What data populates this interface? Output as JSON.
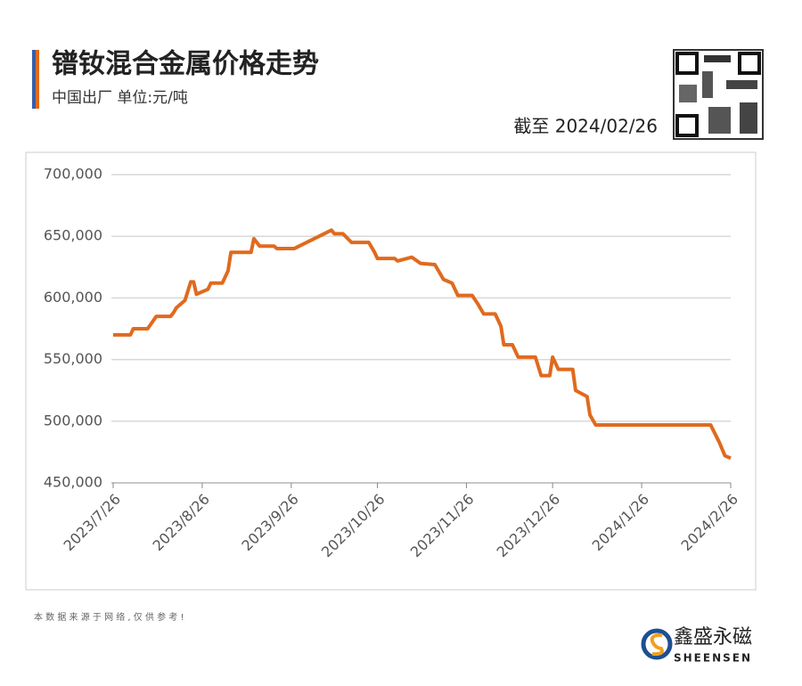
{
  "header": {
    "title": "镨钕混合金属价格走势",
    "subtitle": "中国出厂  单位:元/吨",
    "as_of": "截至 2024/02/26"
  },
  "chart_data": {
    "type": "line",
    "color": "#e06a1e",
    "grid": true,
    "x": [
      "2023/7/26",
      "2023/8/1",
      "2023/8/2",
      "2023/8/7",
      "2023/8/10",
      "2023/8/15",
      "2023/8/16",
      "2023/8/17",
      "2023/8/20",
      "2023/8/22",
      "2023/8/23",
      "2023/8/24",
      "2023/8/28",
      "2023/8/29",
      "2023/9/2",
      "2023/9/4",
      "2023/9/5",
      "2023/9/12",
      "2023/9/13",
      "2023/9/15",
      "2023/9/20",
      "2023/9/21",
      "2023/9/27",
      "2023/10/10",
      "2023/10/11",
      "2023/10/14",
      "2023/10/17",
      "2023/10/23",
      "2023/10/25",
      "2023/10/26",
      "2023/11/1",
      "2023/11/2",
      "2023/11/7",
      "2023/11/10",
      "2023/11/15",
      "2023/11/18",
      "2023/11/21",
      "2023/11/23",
      "2023/11/28",
      "2023/11/30",
      "2023/12/2",
      "2023/12/6",
      "2023/12/8",
      "2023/12/9",
      "2023/12/12",
      "2023/12/14",
      "2023/12/20",
      "2023/12/22",
      "2023/12/25",
      "2023/12/26",
      "2023/12/28",
      "2024/1/2",
      "2024/1/3",
      "2024/1/7",
      "2024/1/8",
      "2024/1/10",
      "2024/2/19",
      "2024/2/22",
      "2024/2/24",
      "2024/2/26"
    ],
    "series": [
      {
        "name": "镨钕混合金属",
        "color": "#e06a1e",
        "values": [
          570000,
          570000,
          575000,
          575000,
          585000,
          585000,
          588000,
          592000,
          598000,
          613000,
          613000,
          603000,
          607000,
          612000,
          612000,
          622000,
          637000,
          637000,
          648000,
          642000,
          642000,
          640000,
          640000,
          655000,
          652000,
          652000,
          645000,
          645000,
          637000,
          632000,
          632000,
          630000,
          633000,
          628000,
          627000,
          615000,
          612000,
          602000,
          602000,
          595000,
          587000,
          587000,
          577000,
          562000,
          562000,
          552000,
          552000,
          537000,
          537000,
          552000,
          542000,
          542000,
          525000,
          520000,
          505000,
          497000,
          497000,
          483000,
          472000,
          470000
        ]
      }
    ],
    "xlim": [
      "2023/7/26",
      "2024/2/26"
    ],
    "xticks": [
      "2023/7/26",
      "2023/8/26",
      "2023/9/26",
      "2023/10/26",
      "2023/11/26",
      "2023/12/26",
      "2024/1/26",
      "2024/2/26"
    ],
    "ylim": [
      450000,
      700000
    ],
    "yticks": [
      {
        "value": 450000,
        "label": "450,000"
      },
      {
        "value": 500000,
        "label": "500,000"
      },
      {
        "value": 550000,
        "label": "550,000"
      },
      {
        "value": 600000,
        "label": "600,000"
      },
      {
        "value": 650000,
        "label": "650,000"
      },
      {
        "value": 700000,
        "label": "700,000"
      }
    ]
  },
  "footer": {
    "source": "本 数 据 来 源 于 网 络 , 仅 供 参 考 !",
    "brand": "鑫盛永磁",
    "brand_en": "SHEENSEN"
  }
}
